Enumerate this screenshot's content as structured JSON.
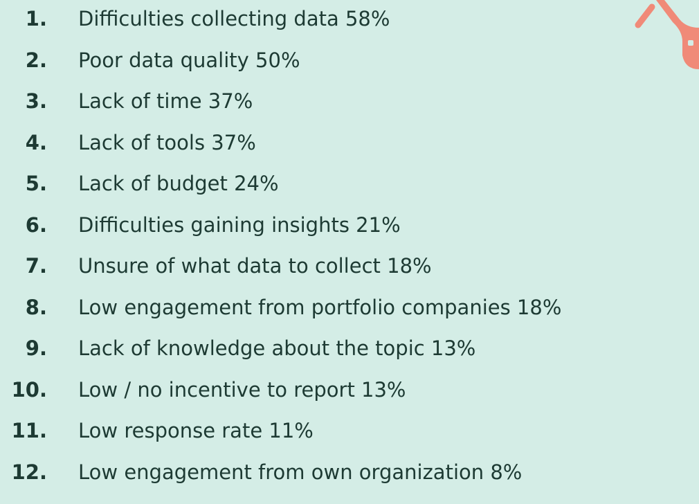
{
  "list": {
    "items": [
      {
        "number": "1.",
        "text": "Difficulties collecting data 58%"
      },
      {
        "number": "2.",
        "text": "Poor data quality 50%"
      },
      {
        "number": "3.",
        "text": "Lack of time 37%"
      },
      {
        "number": "4.",
        "text": "Lack of tools 37%"
      },
      {
        "number": "5.",
        "text": "Lack of budget 24%"
      },
      {
        "number": "6.",
        "text": "Difficulties gaining insights 21%"
      },
      {
        "number": "7.",
        "text": "Unsure of what data to collect 18%"
      },
      {
        "number": "8.",
        "text": "Low engagement from portfolio companies 18%"
      },
      {
        "number": "9.",
        "text": "Lack of knowledge about the topic 13%"
      },
      {
        "number": "10.",
        "text": "Low / no incentive to report 13%"
      },
      {
        "number": "11.",
        "text": "Low response rate 11%"
      },
      {
        "number": "12.",
        "text": "Low engagement from own organization 8%"
      }
    ]
  }
}
